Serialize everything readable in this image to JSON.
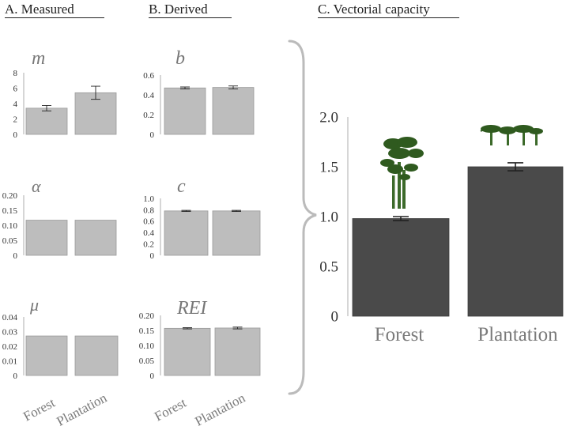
{
  "headers": {
    "a": "A. Measured",
    "b": "B. Derived",
    "c": "C. Vectorial capacity"
  },
  "colors": {
    "small_bar": "#bdbdbd",
    "big_bar": "#4a4a4a",
    "axis": "#bbbbbb",
    "tick_text": "#333333",
    "param_label": "#777777",
    "category_text": "#7a7a7a",
    "brace": "#bbbbbb",
    "tree": "#2f5a1f",
    "trunk": "#3c6a2a"
  },
  "chart_data": [
    {
      "id": "m",
      "type": "bar",
      "label": "m",
      "categories": [
        "Forest",
        "Plantation"
      ],
      "values": [
        3.4,
        5.4
      ],
      "errors": [
        0.35,
        0.85
      ],
      "ylim": [
        0,
        8
      ],
      "ticks": [
        0,
        2,
        4,
        6,
        8
      ],
      "tick_labels": [
        "0",
        "2",
        "4",
        "6",
        "8"
      ]
    },
    {
      "id": "b",
      "type": "bar",
      "label": "b",
      "categories": [
        "Forest",
        "Plantation"
      ],
      "values": [
        0.47,
        0.475
      ],
      "errors": [
        0.01,
        0.015
      ],
      "ylim": [
        0,
        0.6
      ],
      "ticks": [
        0,
        0.2,
        0.4,
        0.6
      ],
      "tick_labels": [
        "0",
        "0.2",
        "0.4",
        "0.6"
      ]
    },
    {
      "id": "alpha",
      "type": "bar",
      "label": "α",
      "categories": [
        "Forest",
        "Plantation"
      ],
      "values": [
        0.117,
        0.117
      ],
      "errors": [
        0,
        0
      ],
      "ylim": [
        0,
        0.2
      ],
      "ticks": [
        0,
        0.05,
        0.1,
        0.15,
        0.2
      ],
      "tick_labels": [
        "0",
        "0.05",
        "0.10",
        "0.15",
        "0.20"
      ]
    },
    {
      "id": "c",
      "type": "bar",
      "label": "c",
      "categories": [
        "Forest",
        "Plantation"
      ],
      "values": [
        0.78,
        0.78
      ],
      "errors": [
        0.01,
        0.01
      ],
      "ylim": [
        0,
        1.0
      ],
      "ticks": [
        0,
        0.2,
        0.4,
        0.6,
        0.8,
        1.0
      ],
      "tick_labels": [
        "0",
        "0.2",
        "0.4",
        "0.6",
        "0.8",
        "1.0"
      ]
    },
    {
      "id": "mu",
      "type": "bar",
      "label": "μ",
      "categories": [
        "Forest",
        "Plantation"
      ],
      "values": [
        0.027,
        0.027
      ],
      "errors": [
        0,
        0
      ],
      "ylim": [
        0,
        0.04
      ],
      "ticks": [
        0,
        0.01,
        0.02,
        0.03,
        0.04
      ],
      "tick_labels": [
        "0",
        "0.01",
        "0.02",
        "0.03",
        "0.04"
      ]
    },
    {
      "id": "rei",
      "type": "bar",
      "label": "REI",
      "categories": [
        "Forest",
        "Plantation"
      ],
      "values": [
        0.157,
        0.158
      ],
      "errors": [
        0.002,
        0.003
      ],
      "ylim": [
        0,
        0.2
      ],
      "ticks": [
        0,
        0.05,
        0.1,
        0.15,
        0.2
      ],
      "tick_labels": [
        "0",
        "0.05",
        "0.10",
        "0.15",
        "0.20"
      ]
    },
    {
      "id": "vc",
      "type": "bar",
      "label": "",
      "categories": [
        "Forest",
        "Plantation"
      ],
      "values": [
        0.98,
        1.5
      ],
      "errors": [
        0.02,
        0.04
      ],
      "ylim": [
        0,
        2.0
      ],
      "ticks": [
        0,
        0.5,
        1.0,
        1.5,
        2.0
      ],
      "tick_labels": [
        "0",
        "0.5",
        "1.0",
        "1.5",
        "2.0"
      ]
    }
  ]
}
